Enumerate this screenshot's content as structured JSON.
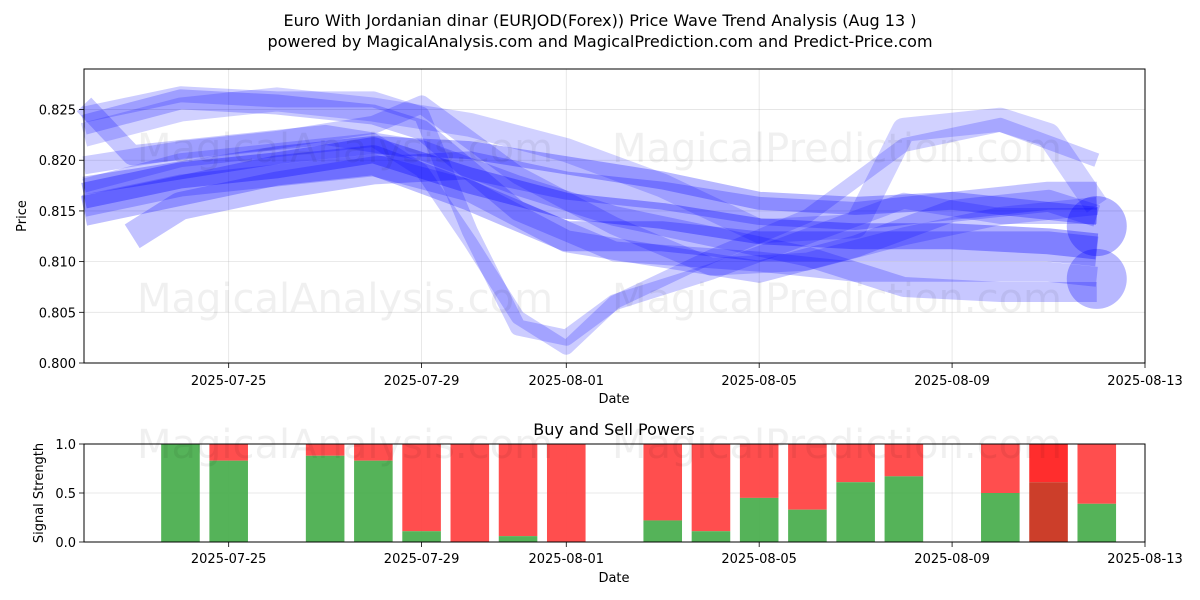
{
  "title_line1": "Euro With Jordanian dinar (EURJOD(Forex)) Price Wave Trend Analysis (Aug 13 )",
  "title_line2": "powered by MagicalAnalysis.com and MagicalPrediction.com and Predict-Price.com",
  "watermarks": [
    "MagicalAnalysis.com",
    "MagicalPrediction.com"
  ],
  "colors": {
    "wave": "#0000ff",
    "buy": "#4caf50",
    "sell": "#ff4444",
    "sell_bright": "#ff2222",
    "buy_dark": "#c9341f"
  },
  "chart_data": [
    {
      "type": "line",
      "xlabel": "Date",
      "ylabel": "Price",
      "x_ticks": [
        "2025-07-25",
        "2025-07-29",
        "2025-08-01",
        "2025-08-05",
        "2025-08-09",
        "2025-08-13"
      ],
      "y_ticks": [
        "0.800",
        "0.805",
        "0.810",
        "0.815",
        "0.820",
        "0.825"
      ],
      "xlim": [
        "2025-07-22",
        "2025-08-13"
      ],
      "ylim": [
        0.8,
        0.829
      ],
      "grid": true,
      "series": [
        {
          "x": [
            "2025-07-22",
            "2025-07-24",
            "2025-07-26",
            "2025-07-28",
            "2025-07-30",
            "2025-08-01",
            "2025-08-03",
            "2025-08-05",
            "2025-08-07",
            "2025-08-09",
            "2025-08-11",
            "2025-08-12"
          ],
          "y": [
            0.8165,
            0.8185,
            0.8195,
            0.821,
            0.818,
            0.8155,
            0.8145,
            0.813,
            0.8125,
            0.8125,
            0.812,
            0.8115
          ]
        },
        {
          "x": [
            "2025-07-22",
            "2025-07-24",
            "2025-07-26",
            "2025-07-28",
            "2025-07-30",
            "2025-08-01",
            "2025-08-03",
            "2025-08-05",
            "2025-08-07",
            "2025-08-09",
            "2025-08-11",
            "2025-08-12"
          ],
          "y": [
            0.8175,
            0.819,
            0.8205,
            0.8215,
            0.821,
            0.8195,
            0.818,
            0.816,
            0.8155,
            0.816,
            0.815,
            0.8145
          ]
        },
        {
          "x": [
            "2025-07-22",
            "2025-07-24",
            "2025-07-26",
            "2025-07-28",
            "2025-07-30",
            "2025-08-01",
            "2025-08-03",
            "2025-08-05",
            "2025-08-07",
            "2025-08-09",
            "2025-08-11",
            "2025-08-12"
          ],
          "y": [
            0.815,
            0.817,
            0.819,
            0.82,
            0.8165,
            0.8125,
            0.8125,
            0.8115,
            0.8115,
            0.8115,
            0.8115,
            0.811
          ]
        },
        {
          "x": [
            "2025-07-22",
            "2025-07-24",
            "2025-07-26",
            "2025-07-28",
            "2025-07-30",
            "2025-08-01",
            "2025-08-03",
            "2025-08-05",
            "2025-08-07",
            "2025-08-09",
            "2025-08-11",
            "2025-08-12"
          ],
          "y": [
            0.8155,
            0.8175,
            0.8185,
            0.8195,
            0.817,
            0.812,
            0.8105,
            0.809,
            0.8115,
            0.815,
            0.816,
            0.8145
          ]
        },
        {
          "x": [
            "2025-07-22",
            "2025-07-24",
            "2025-07-26",
            "2025-07-28",
            "2025-07-29",
            "2025-07-31",
            "2025-08-01",
            "2025-08-02",
            "2025-08-05",
            "2025-08-07",
            "2025-08-09",
            "2025-08-11",
            "2025-08-12"
          ],
          "y": [
            0.8235,
            0.826,
            0.8255,
            0.8245,
            0.823,
            0.815,
            0.813,
            0.811,
            0.81,
            0.809,
            0.809,
            0.809,
            0.8085
          ]
        },
        {
          "x": [
            "2025-07-22",
            "2025-07-24",
            "2025-07-26",
            "2025-07-28",
            "2025-07-29",
            "2025-07-30",
            "2025-07-31",
            "2025-08-01",
            "2025-08-02",
            "2025-08-04",
            "2025-08-06",
            "2025-08-08",
            "2025-08-10",
            "2025-08-12"
          ],
          "y": [
            0.8245,
            0.8265,
            0.826,
            0.826,
            0.8245,
            0.813,
            0.8035,
            0.8025,
            0.806,
            0.809,
            0.8125,
            0.816,
            0.8145,
            0.8145
          ]
        },
        {
          "x": [
            "2025-07-22",
            "2025-07-24",
            "2025-07-26",
            "2025-07-28",
            "2025-07-29",
            "2025-07-30",
            "2025-07-31",
            "2025-08-01",
            "2025-08-02",
            "2025-08-04",
            "2025-08-06",
            "2025-08-08",
            "2025-08-10",
            "2025-08-12"
          ],
          "y": [
            0.8175,
            0.82,
            0.821,
            0.822,
            0.819,
            0.812,
            0.8045,
            0.8015,
            0.806,
            0.8105,
            0.8145,
            0.8215,
            0.8235,
            0.82
          ]
        },
        {
          "x": [
            "2025-07-22",
            "2025-07-24",
            "2025-07-26",
            "2025-07-28",
            "2025-07-30",
            "2025-08-01",
            "2025-08-03",
            "2025-08-05",
            "2025-08-07",
            "2025-08-08",
            "2025-08-10",
            "2025-08-11",
            "2025-08-12"
          ],
          "y": [
            0.8225,
            0.825,
            0.826,
            0.825,
            0.8235,
            0.821,
            0.8175,
            0.813,
            0.8135,
            0.823,
            0.824,
            0.8225,
            0.8155
          ]
        },
        {
          "x": [
            "2025-07-22",
            "2025-07-24",
            "2025-07-26",
            "2025-07-28",
            "2025-07-29",
            "2025-07-31",
            "2025-08-02",
            "2025-08-04",
            "2025-08-06",
            "2025-08-08",
            "2025-08-10",
            "2025-08-11",
            "2025-08-12"
          ],
          "y": [
            0.8195,
            0.821,
            0.822,
            0.8235,
            0.8255,
            0.8185,
            0.8135,
            0.8095,
            0.81,
            0.8125,
            0.8145,
            0.815,
            0.8155
          ]
        },
        {
          "x": [
            "2025-07-22",
            "2025-07-23",
            "2025-07-25",
            "2025-07-27",
            "2025-07-29",
            "2025-07-31",
            "2025-08-02",
            "2025-08-04",
            "2025-08-06",
            "2025-08-08",
            "2025-08-10",
            "2025-08-12"
          ],
          "y": [
            0.8255,
            0.8205,
            0.8215,
            0.8225,
            0.821,
            0.8175,
            0.8145,
            0.8125,
            0.8105,
            0.8075,
            0.807,
            0.807
          ]
        },
        {
          "x": [
            "2025-07-23",
            "2025-07-24",
            "2025-07-26",
            "2025-07-28",
            "2025-07-30",
            "2025-08-01",
            "2025-08-03",
            "2025-08-05",
            "2025-08-07",
            "2025-08-09",
            "2025-08-11",
            "2025-08-12"
          ],
          "y": [
            0.8125,
            0.8155,
            0.8175,
            0.819,
            0.8195,
            0.8175,
            0.8165,
            0.815,
            0.8145,
            0.8155,
            0.8165,
            0.8165
          ]
        }
      ]
    },
    {
      "type": "bar",
      "title": "Buy and Sell Powers",
      "xlabel": "Date",
      "ylabel": "Signal Strength",
      "x_ticks": [
        "2025-07-25",
        "2025-07-29",
        "2025-08-01",
        "2025-08-05",
        "2025-08-09",
        "2025-08-13"
      ],
      "y_ticks": [
        "0.0",
        "0.5",
        "1.0"
      ],
      "ylim": [
        0,
        1
      ],
      "grid": true,
      "bars": [
        {
          "date": "2025-07-24",
          "buy": 1.0
        },
        {
          "date": "2025-07-25",
          "buy": 0.83
        },
        {
          "date": "2025-07-27",
          "buy": 0.88
        },
        {
          "date": "2025-07-28",
          "buy": 0.83
        },
        {
          "date": "2025-07-29",
          "buy": 0.11
        },
        {
          "date": "2025-07-30",
          "buy": 0.0
        },
        {
          "date": "2025-07-31",
          "buy": 0.06
        },
        {
          "date": "2025-08-01",
          "buy": 0.0
        },
        {
          "date": "2025-08-03",
          "buy": 0.22
        },
        {
          "date": "2025-08-04",
          "buy": 0.11
        },
        {
          "date": "2025-08-05",
          "buy": 0.45
        },
        {
          "date": "2025-08-06",
          "buy": 0.33
        },
        {
          "date": "2025-08-07",
          "buy": 0.61
        },
        {
          "date": "2025-08-08",
          "buy": 0.67
        },
        {
          "date": "2025-08-10",
          "buy": 0.5
        },
        {
          "date": "2025-08-11",
          "buy": 0.61,
          "highlight": true
        },
        {
          "date": "2025-08-12",
          "buy": 0.39
        }
      ]
    }
  ]
}
